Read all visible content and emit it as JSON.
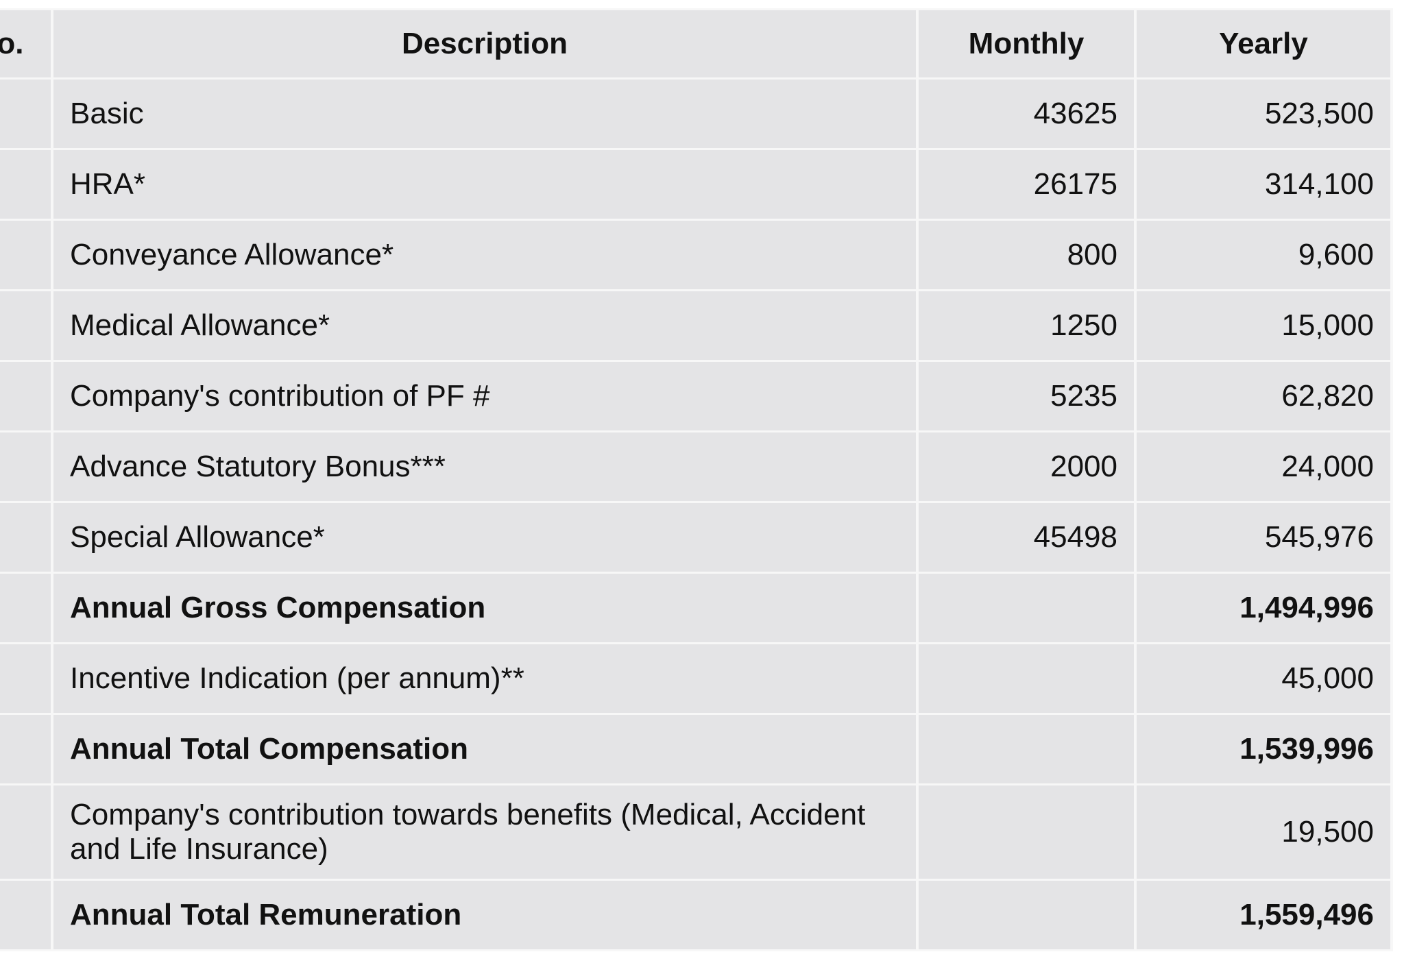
{
  "table": {
    "headers": {
      "no": "No.",
      "description": "Description",
      "monthly": "Monthly",
      "yearly": "Yearly"
    },
    "rows": [
      {
        "description": "Basic",
        "monthly": "43625",
        "yearly": "523,500",
        "bold": false
      },
      {
        "description": "HRA*",
        "monthly": "26175",
        "yearly": "314,100",
        "bold": false
      },
      {
        "description": "Conveyance Allowance*",
        "monthly": "800",
        "yearly": "9,600",
        "bold": false
      },
      {
        "description": "Medical Allowance*",
        "monthly": "1250",
        "yearly": "15,000",
        "bold": false
      },
      {
        "description": "Company's contribution of PF #",
        "monthly": "5235",
        "yearly": "62,820",
        "bold": false
      },
      {
        "description": "Advance Statutory Bonus***",
        "monthly": "2000",
        "yearly": "24,000",
        "bold": false
      },
      {
        "description": "Special Allowance*",
        "monthly": "45498",
        "yearly": "545,976",
        "bold": false
      },
      {
        "description": "Annual Gross Compensation",
        "monthly": "",
        "yearly": "1,494,996",
        "bold": true
      },
      {
        "description": "Incentive Indication (per annum)**",
        "monthly": "",
        "yearly": "45,000",
        "bold": false
      },
      {
        "description": "Annual Total Compensation",
        "monthly": "",
        "yearly": "1,539,996",
        "bold": true
      },
      {
        "description": "Company's contribution towards benefits (Medical, Accident and Life Insurance)",
        "monthly": "",
        "yearly": "19,500",
        "bold": false
      },
      {
        "description": "Annual Total Remuneration",
        "monthly": "",
        "yearly": "1,559,496",
        "bold": true
      }
    ]
  }
}
